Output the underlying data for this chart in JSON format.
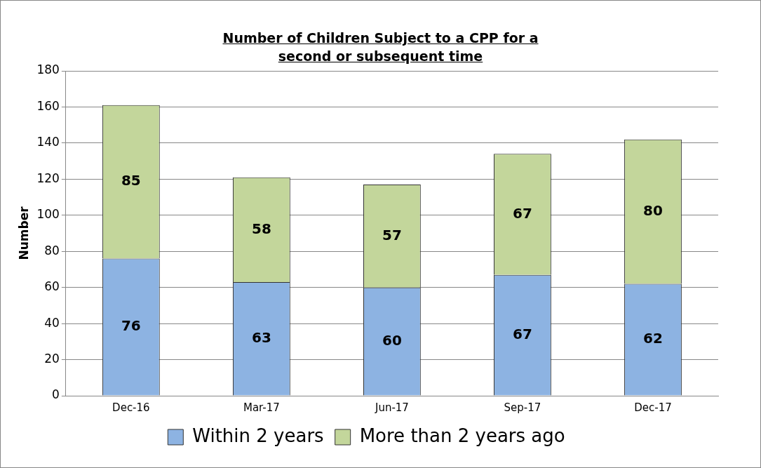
{
  "chart_data": {
    "type": "bar",
    "title": "Number of Children Subject to a CPP for a second or subsequent time",
    "ylabel": "Number",
    "categories": [
      "Dec-16",
      "Mar-17",
      "Jun-17",
      "Sep-17",
      "Dec-17"
    ],
    "stacked": true,
    "series": [
      {
        "name": "Within 2 years",
        "color": "#8db3e2",
        "values": [
          76,
          63,
          60,
          67,
          62
        ]
      },
      {
        "name": "More than 2 years ago",
        "color": "#c3d69b",
        "values": [
          85,
          58,
          57,
          67,
          80
        ]
      }
    ],
    "ylim": [
      0,
      180
    ],
    "yticks": [
      0,
      20,
      40,
      60,
      80,
      100,
      120,
      140,
      160,
      180
    ],
    "grid": "y",
    "legend": "bottom",
    "data_labels": true
  }
}
